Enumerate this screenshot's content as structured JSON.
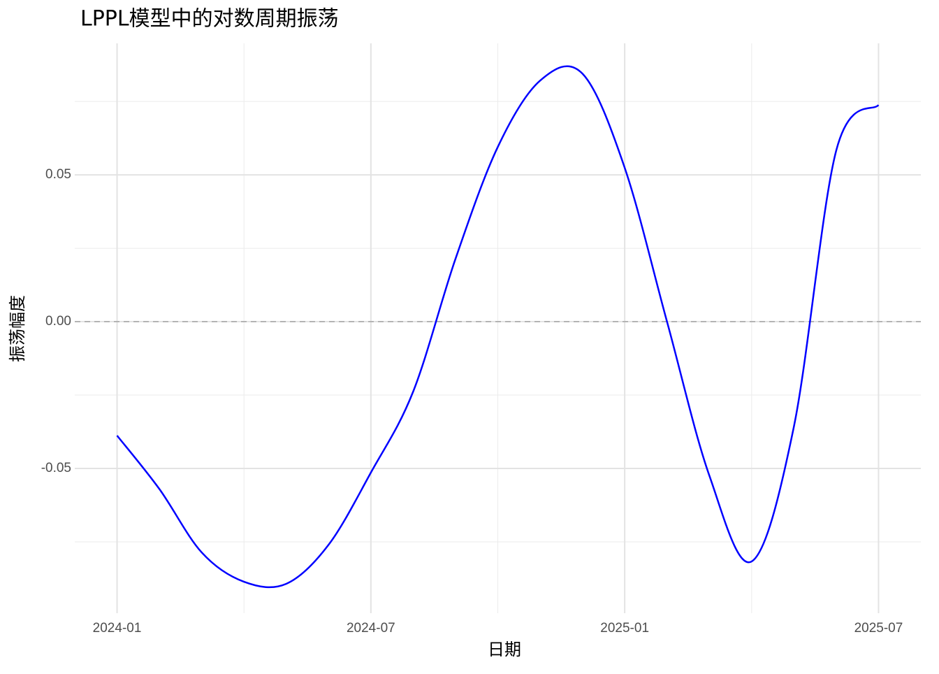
{
  "chart_data": {
    "type": "line",
    "title": "LPPL模型中的对数周期振荡",
    "x_label": "日期",
    "y_label": "振荡幅度",
    "x": [
      "2024-01",
      "2024-02",
      "2024-03",
      "2024-04",
      "2024-05",
      "2024-06",
      "2024-07",
      "2024-08",
      "2024-09",
      "2024-10",
      "2024-11",
      "2024-12",
      "2025-01",
      "2025-02",
      "2025-03",
      "2025-04",
      "2025-05",
      "2025-06",
      "2025-07"
    ],
    "series": [
      {
        "name": "振荡幅度",
        "color": "#0000ff",
        "values": [
          -0.0388,
          -0.057,
          -0.0786,
          -0.0886,
          -0.0893,
          -0.076,
          -0.0514,
          -0.0238,
          0.0214,
          0.0595,
          0.0821,
          0.0845,
          0.0524,
          0.0,
          -0.0524,
          -0.0817,
          -0.0357,
          0.0583,
          0.0738
        ]
      }
    ],
    "xlim": [
      "2023-12",
      "2025-08"
    ],
    "xticks": [
      "2024-01",
      "2024-07",
      "2025-01",
      "2025-07"
    ],
    "ylim": [
      -0.0993,
      0.0948
    ],
    "yticks": [
      -0.05,
      {
        "value": 0,
        "label": "0.00"
      },
      0.05
    ],
    "reference_line": 0,
    "grid": true,
    "legend": false
  }
}
